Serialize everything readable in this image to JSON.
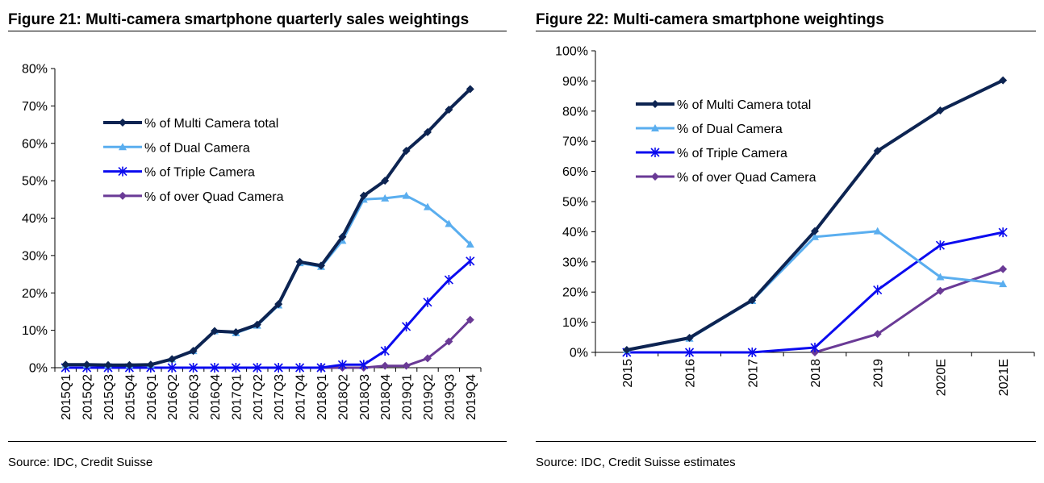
{
  "figures": [
    {
      "title": "Figure 21: Multi-camera smartphone quarterly sales weightings",
      "source": "Source: IDC, Credit Suisse"
    },
    {
      "title": "Figure 22: Multi-camera smartphone weightings",
      "source": "Source: IDC, Credit Suisse estimates"
    }
  ],
  "chart_data": [
    {
      "type": "line",
      "categories": [
        "2015Q1",
        "2015Q2",
        "2015Q3",
        "2015Q4",
        "2016Q1",
        "2016Q2",
        "2016Q3",
        "2016Q4",
        "2017Q1",
        "2017Q2",
        "2017Q3",
        "2017Q4",
        "2018Q1",
        "2018Q2",
        "2018Q3",
        "2018Q4",
        "2019Q1",
        "2019Q2",
        "2019Q3",
        "2019Q4"
      ],
      "ylim": [
        0,
        80
      ],
      "yticks": [
        "0%",
        "10%",
        "20%",
        "30%",
        "40%",
        "50%",
        "60%",
        "70%",
        "80%"
      ],
      "legend_position": "top-left",
      "series": [
        {
          "name": "% of Multi Camera total",
          "color": "#0d2452",
          "marker": "diamond",
          "values": [
            0.8,
            0.8,
            0.7,
            0.7,
            0.8,
            2.3,
            4.5,
            9.8,
            9.5,
            11.5,
            17,
            28.3,
            27.3,
            35,
            46,
            50,
            58,
            63,
            69,
            74.5
          ]
        },
        {
          "name": "% of Dual Camera",
          "color": "#5aaeef",
          "marker": "triangle",
          "values": [
            0.8,
            0.8,
            0.7,
            0.7,
            0.8,
            2.3,
            4.5,
            9.8,
            9.3,
            11.3,
            16.7,
            28,
            27,
            34,
            45,
            45.3,
            46,
            43,
            38.5,
            33
          ]
        },
        {
          "name": "% of Triple Camera",
          "color": "#0b0bef",
          "marker": "asterisk",
          "values": [
            0,
            0,
            0,
            0,
            0,
            0,
            0,
            0,
            0,
            0,
            0,
            0,
            0,
            0.8,
            0.8,
            4.5,
            11,
            17.5,
            23.5,
            28.5
          ]
        },
        {
          "name": "% of over Quad Camera",
          "color": "#6a3a96",
          "marker": "diamond",
          "values": [
            null,
            null,
            null,
            null,
            null,
            null,
            null,
            null,
            null,
            null,
            null,
            null,
            0,
            0,
            0,
            0.5,
            0.5,
            2.5,
            7,
            12.8
          ]
        }
      ]
    },
    {
      "type": "line",
      "categories": [
        "2015",
        "2016",
        "2017",
        "2018",
        "2019",
        "2020E",
        "2021E"
      ],
      "ylim": [
        0,
        100
      ],
      "yticks": [
        "0%",
        "10%",
        "20%",
        "30%",
        "40%",
        "50%",
        "60%",
        "70%",
        "80%",
        "90%",
        "100%"
      ],
      "legend_position": "top-left",
      "series": [
        {
          "name": "% of Multi Camera total",
          "color": "#0d2452",
          "marker": "diamond",
          "values": [
            0.8,
            4.8,
            17.3,
            40.2,
            66.8,
            80.2,
            90.2
          ]
        },
        {
          "name": "% of Dual Camera",
          "color": "#5aaeef",
          "marker": "triangle",
          "values": [
            0.8,
            4.6,
            17.1,
            38.3,
            40.2,
            25,
            22.7
          ]
        },
        {
          "name": "% of Triple Camera",
          "color": "#0b0bef",
          "marker": "asterisk",
          "values": [
            0,
            0,
            0,
            1.6,
            20.7,
            35.5,
            39.8
          ]
        },
        {
          "name": "% of over Quad Camera",
          "color": "#6a3a96",
          "marker": "diamond",
          "values": [
            null,
            null,
            null,
            0,
            6.1,
            20.4,
            27.6
          ]
        }
      ]
    }
  ]
}
